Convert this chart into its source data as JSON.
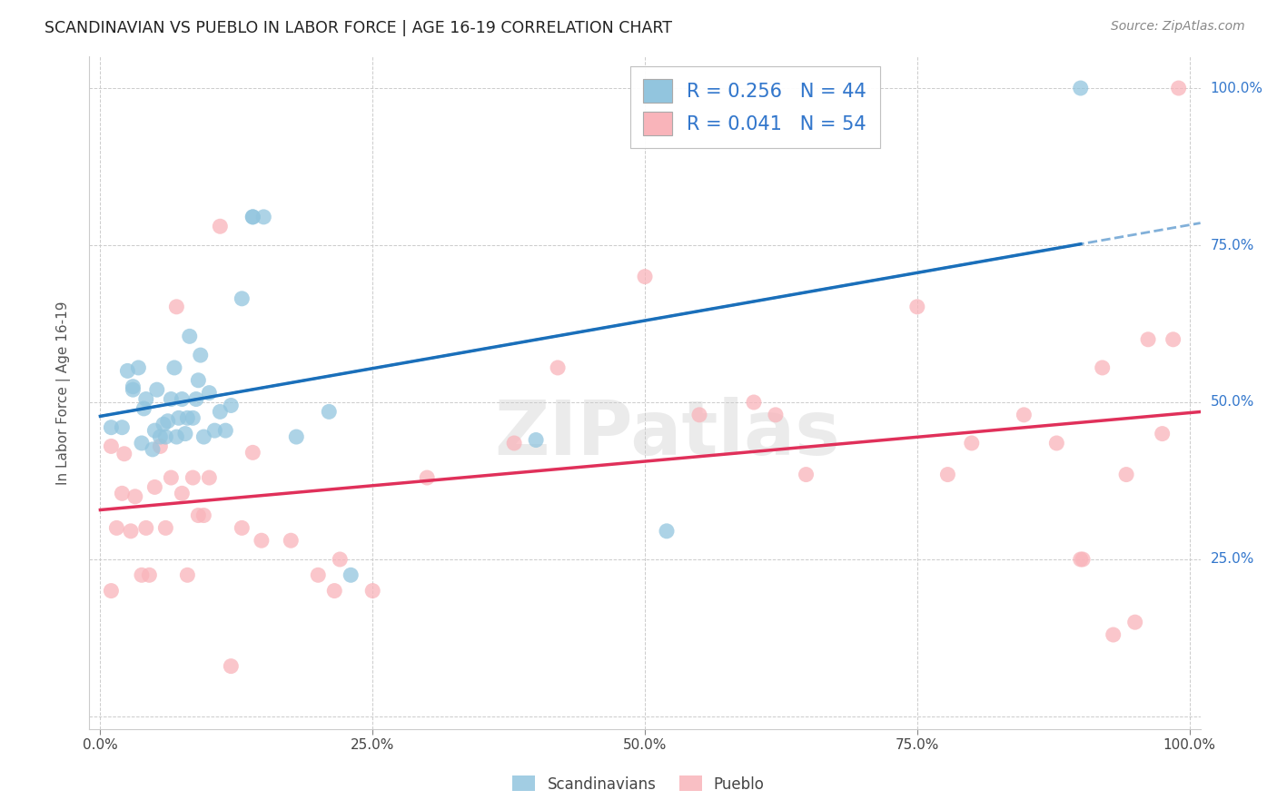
{
  "title": "SCANDINAVIAN VS PUEBLO IN LABOR FORCE | AGE 16-19 CORRELATION CHART",
  "source": "Source: ZipAtlas.com",
  "ylabel": "In Labor Force | Age 16-19",
  "xlim": [
    -0.01,
    1.01
  ],
  "ylim": [
    -0.02,
    1.05
  ],
  "xticks": [
    0.0,
    0.25,
    0.5,
    0.75,
    1.0
  ],
  "yticks": [
    0.0,
    0.25,
    0.5,
    0.75,
    1.0
  ],
  "xticklabels": [
    "0.0%",
    "25.0%",
    "50.0%",
    "75.0%",
    "100.0%"
  ],
  "yticklabels": [
    "",
    "25.0%",
    "50.0%",
    "75.0%",
    "100.0%"
  ],
  "R_scand": 0.256,
  "N_scand": 44,
  "R_pueblo": 0.041,
  "N_pueblo": 54,
  "blue_color": "#92c5de",
  "pink_color": "#f9b4ba",
  "trend_blue": "#1a6fba",
  "trend_pink": "#e0305a",
  "label_color": "#3377cc",
  "watermark_text": "ZIPatlas",
  "scand_x": [
    0.01,
    0.02,
    0.025,
    0.03,
    0.03,
    0.035,
    0.038,
    0.04,
    0.042,
    0.048,
    0.05,
    0.052,
    0.055,
    0.058,
    0.06,
    0.062,
    0.065,
    0.068,
    0.07,
    0.072,
    0.075,
    0.078,
    0.08,
    0.082,
    0.085,
    0.088,
    0.09,
    0.092,
    0.095,
    0.1,
    0.105,
    0.11,
    0.115,
    0.12,
    0.13,
    0.14,
    0.14,
    0.15,
    0.18,
    0.21,
    0.23,
    0.4,
    0.52,
    0.9
  ],
  "scand_y": [
    0.46,
    0.46,
    0.55,
    0.52,
    0.525,
    0.555,
    0.435,
    0.49,
    0.505,
    0.425,
    0.455,
    0.52,
    0.445,
    0.465,
    0.445,
    0.47,
    0.505,
    0.555,
    0.445,
    0.475,
    0.505,
    0.45,
    0.475,
    0.605,
    0.475,
    0.505,
    0.535,
    0.575,
    0.445,
    0.515,
    0.455,
    0.485,
    0.455,
    0.495,
    0.665,
    0.795,
    0.795,
    0.795,
    0.445,
    0.485,
    0.225,
    0.44,
    0.295,
    1.0
  ],
  "pueblo_x": [
    0.01,
    0.01,
    0.015,
    0.02,
    0.022,
    0.028,
    0.032,
    0.038,
    0.042,
    0.045,
    0.05,
    0.055,
    0.06,
    0.065,
    0.07,
    0.075,
    0.08,
    0.085,
    0.09,
    0.095,
    0.1,
    0.11,
    0.12,
    0.13,
    0.14,
    0.148,
    0.175,
    0.2,
    0.215,
    0.22,
    0.25,
    0.3,
    0.38,
    0.42,
    0.5,
    0.55,
    0.6,
    0.62,
    0.648,
    0.75,
    0.778,
    0.8,
    0.848,
    0.878,
    0.9,
    0.902,
    0.92,
    0.93,
    0.942,
    0.95,
    0.962,
    0.975,
    0.985,
    0.99
  ],
  "pueblo_y": [
    0.43,
    0.2,
    0.3,
    0.355,
    0.418,
    0.295,
    0.35,
    0.225,
    0.3,
    0.225,
    0.365,
    0.43,
    0.3,
    0.38,
    0.652,
    0.355,
    0.225,
    0.38,
    0.32,
    0.32,
    0.38,
    0.78,
    0.08,
    0.3,
    0.42,
    0.28,
    0.28,
    0.225,
    0.2,
    0.25,
    0.2,
    0.38,
    0.435,
    0.555,
    0.7,
    0.48,
    0.5,
    0.48,
    0.385,
    0.652,
    0.385,
    0.435,
    0.48,
    0.435,
    0.25,
    0.25,
    0.555,
    0.13,
    0.385,
    0.15,
    0.6,
    0.45,
    0.6,
    1.0
  ]
}
